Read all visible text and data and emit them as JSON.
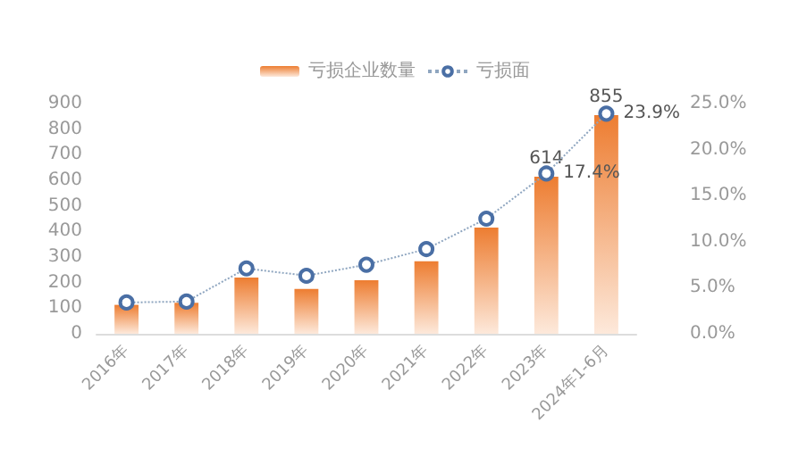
{
  "chart_data": {
    "type": "bar",
    "categories": [
      "2016年",
      "2017年",
      "2018年",
      "2019年",
      "2020年",
      "2021年",
      "2022年",
      "2023年",
      "2024年1-6月"
    ],
    "series": [
      {
        "name": "亏损企业数量",
        "color": "#ed7d31",
        "values": [
          113,
          121,
          220,
          175,
          209,
          283,
          415,
          614,
          855
        ],
        "value_labels": [
          null,
          null,
          null,
          null,
          null,
          null,
          null,
          "614",
          "855"
        ]
      },
      {
        "name": "亏损面",
        "type": "line",
        "axis": "y2",
        "color": "#4a6fa5",
        "marker": "circle",
        "line_style": "dotted",
        "values": [
          3.4,
          3.5,
          7.1,
          6.3,
          7.5,
          9.2,
          12.5,
          17.4,
          23.9
        ],
        "value_labels": [
          null,
          null,
          null,
          null,
          null,
          null,
          null,
          "17.4%",
          "23.9%"
        ]
      }
    ],
    "ylim": [
      0,
      900
    ],
    "yticks": [
      0,
      100,
      200,
      300,
      400,
      500,
      600,
      700,
      800,
      900
    ],
    "y2lim": [
      0,
      25
    ],
    "y2ticks": [
      {
        "value": 0,
        "label": "0.0%"
      },
      {
        "value": 5,
        "label": "5.0%"
      },
      {
        "value": 10,
        "label": "10.0%"
      },
      {
        "value": 15,
        "label": "15.0%"
      },
      {
        "value": 20,
        "label": "20.0%"
      },
      {
        "value": 25,
        "label": "25.0%"
      }
    ],
    "legend": "top"
  }
}
